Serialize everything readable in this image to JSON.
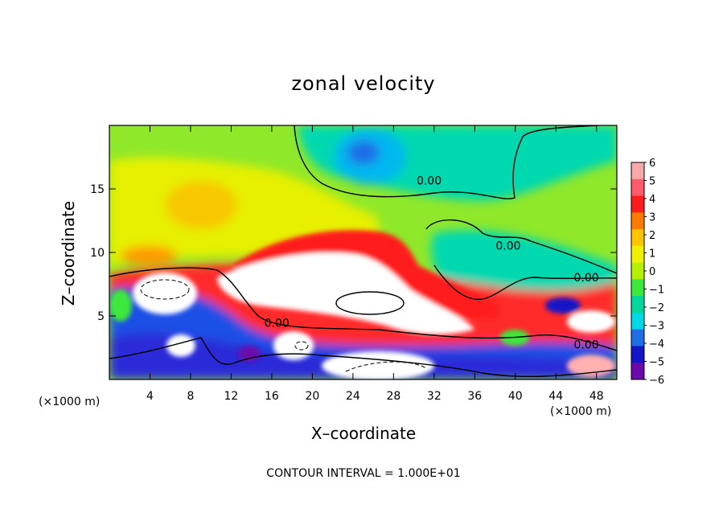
{
  "chart_data": {
    "type": "heatmap",
    "title": "zonal velocity",
    "xlabel": "X–coordinate",
    "ylabel": "Z–coordinate",
    "x_unit_left": "(×1000 m)",
    "x_unit_right": "(×1000 m)",
    "xlim": [
      0,
      50
    ],
    "ylim": [
      0,
      20
    ],
    "x_ticks": [
      4,
      8,
      12,
      16,
      20,
      24,
      28,
      32,
      36,
      40,
      44,
      48
    ],
    "x_tick_labels": [
      "4",
      "8",
      "12",
      "16",
      "20",
      "24",
      "28",
      "32",
      "36",
      "40",
      "44",
      "48"
    ],
    "y_ticks": [
      5,
      10,
      15
    ],
    "y_tick_labels": [
      "5",
      "10",
      "15"
    ],
    "colorbar": {
      "min": -6,
      "max": 6,
      "levels": [
        6,
        5,
        4,
        3,
        2,
        1,
        0,
        -1,
        -2,
        -3,
        -4,
        -5,
        -6
      ],
      "labels": [
        "6",
        "5",
        "4",
        "3",
        "2",
        "1",
        "0",
        "−1",
        "−2",
        "−3",
        "−4",
        "−5",
        "−6"
      ],
      "colors": [
        "#f7a8a8",
        "#ff5a6a",
        "#ff1c1c",
        "#ff7a00",
        "#ffc400",
        "#f0f000",
        "#b4f000",
        "#3ce83c",
        "#00d89c",
        "#00d8e6",
        "#1e6ee6",
        "#1414c8",
        "#6a0aaa"
      ]
    },
    "contour_labels": [
      {
        "text": "0.00",
        "x": 31.5,
        "y": 15.4
      },
      {
        "text": "0.00",
        "x": 39.3,
        "y": 10.3
      },
      {
        "text": "0.00",
        "x": 47.0,
        "y": 7.8
      },
      {
        "text": "0.00",
        "x": 16.5,
        "y": 4.2
      },
      {
        "text": "0.00",
        "x": 47.0,
        "y": 2.5
      }
    ],
    "footer": "CONTOUR INTERVAL = 1.000E+01"
  }
}
